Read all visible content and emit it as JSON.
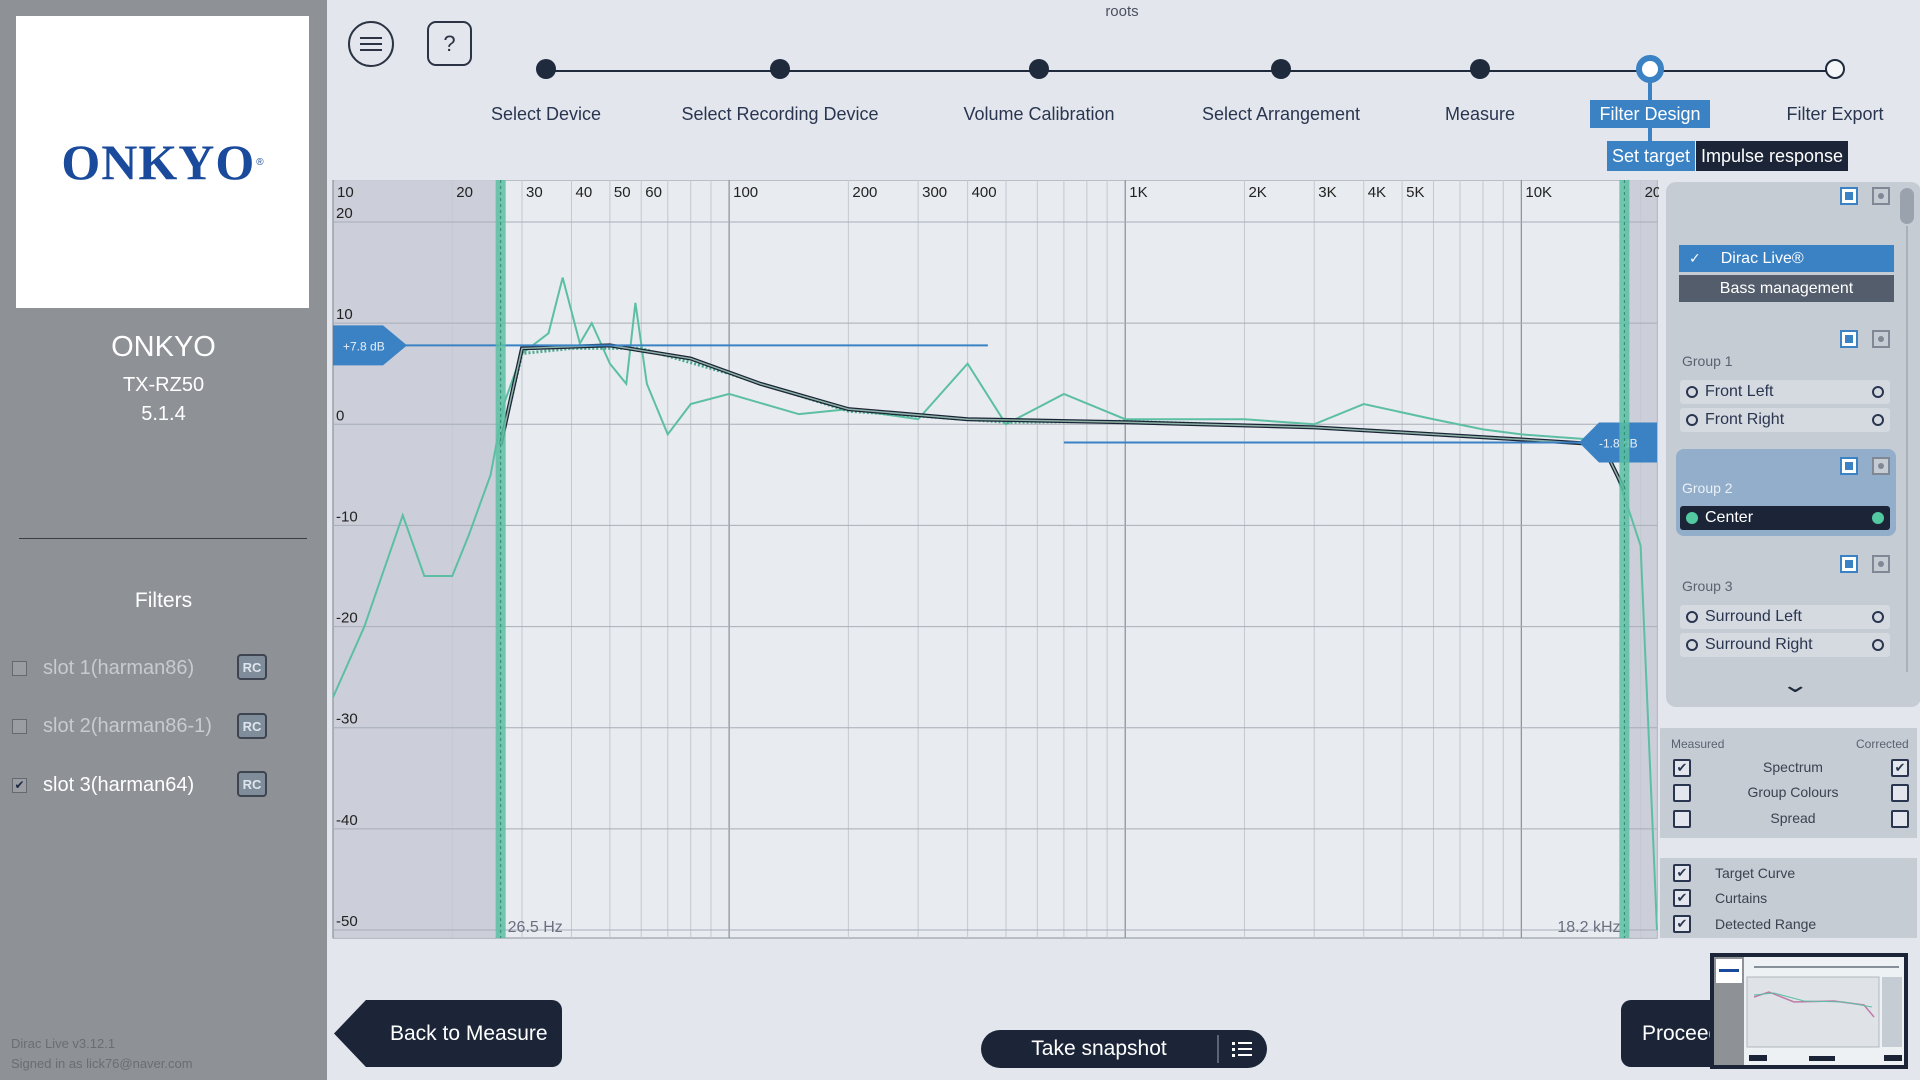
{
  "app": {
    "title": "roots"
  },
  "device": {
    "logo_text": "ONKYO",
    "brand": "ONKYO",
    "model": "TX-RZ50",
    "config": "5.1.4"
  },
  "filters": {
    "title": "Filters",
    "slots": [
      {
        "label": "slot 1(harman86)",
        "checked": false,
        "badge": "RC"
      },
      {
        "label": "slot 2(harman86-1)",
        "checked": false,
        "badge": "RC"
      },
      {
        "label": "slot 3(harman64)",
        "checked": true,
        "badge": "RC"
      }
    ]
  },
  "footer": {
    "version": "Dirac Live v3.12.1",
    "signed_in": "Signed in as lick76@naver.com"
  },
  "toolbar": {
    "help_label": "?"
  },
  "steps": [
    {
      "label": "Select Device",
      "state": "done"
    },
    {
      "label": "Select Recording Device",
      "state": "done"
    },
    {
      "label": "Volume Calibration",
      "state": "done"
    },
    {
      "label": "Select Arrangement",
      "state": "done"
    },
    {
      "label": "Measure",
      "state": "done"
    },
    {
      "label": "Filter Design",
      "state": "active"
    },
    {
      "label": "Filter Export",
      "state": "todo"
    }
  ],
  "subtabs": {
    "target": "Set target",
    "impulse": "Impulse response"
  },
  "chart": {
    "x_ticks": [
      "10",
      "20",
      "30",
      "40",
      "50",
      "60",
      "100",
      "200",
      "300",
      "400",
      "1K",
      "2K",
      "3K",
      "4K",
      "5K",
      "10K",
      "20K"
    ],
    "y_ticks": [
      "20",
      "10",
      "0",
      "-10",
      "-20",
      "-30",
      "-40",
      "-50"
    ],
    "low_curtain_label": "26.5 Hz",
    "high_curtain_label": "18.2 kHz",
    "low_shelf_label": "+7.8 dB",
    "high_shelf_label": "-1.8 dB"
  },
  "chart_data": {
    "type": "line",
    "xlabel": "",
    "ylabel": "",
    "x_scale": "log",
    "xlim": [
      10,
      22000
    ],
    "ylim": [
      -50,
      20
    ],
    "x_ticks": [
      10,
      20,
      30,
      40,
      50,
      60,
      100,
      200,
      300,
      400,
      1000,
      2000,
      3000,
      4000,
      5000,
      10000,
      20000
    ],
    "y_ticks": [
      20,
      10,
      0,
      -10,
      -20,
      -30,
      -40,
      -50
    ],
    "grid": true,
    "curtains_hz": [
      26.5,
      18200
    ],
    "target_curve": {
      "points": [
        [
          26.5,
          -2
        ],
        [
          30,
          7.5
        ],
        [
          50,
          7.8
        ],
        [
          80,
          6.5
        ],
        [
          120,
          4
        ],
        [
          200,
          1.5
        ],
        [
          400,
          0.5
        ],
        [
          1000,
          0.2
        ],
        [
          3000,
          -0.3
        ],
        [
          10000,
          -1.5
        ],
        [
          16000,
          -2
        ],
        [
          18200,
          -6.5
        ]
      ]
    },
    "corrected_response": {
      "points": [
        [
          26.5,
          -2
        ],
        [
          30,
          7
        ],
        [
          40,
          7.5
        ],
        [
          60,
          7.5
        ],
        [
          100,
          5
        ],
        [
          200,
          1.3
        ],
        [
          500,
          0.2
        ],
        [
          1000,
          0.3
        ],
        [
          3000,
          -0.3
        ],
        [
          10000,
          -1.5
        ],
        [
          16000,
          -2
        ],
        [
          18000,
          -6
        ]
      ]
    },
    "measured_response": {
      "points": [
        [
          10,
          -27
        ],
        [
          12,
          -20
        ],
        [
          15,
          -9
        ],
        [
          17,
          -15
        ],
        [
          20,
          -15
        ],
        [
          22,
          -11
        ],
        [
          25,
          -5
        ],
        [
          27,
          2
        ],
        [
          30,
          7
        ],
        [
          35,
          9
        ],
        [
          38,
          14.5
        ],
        [
          42,
          8
        ],
        [
          45,
          10
        ],
        [
          50,
          6
        ],
        [
          55,
          4
        ],
        [
          58,
          12
        ],
        [
          62,
          4
        ],
        [
          70,
          -1
        ],
        [
          80,
          2
        ],
        [
          100,
          3
        ],
        [
          150,
          1
        ],
        [
          200,
          1.5
        ],
        [
          300,
          0.5
        ],
        [
          400,
          6
        ],
        [
          500,
          0
        ],
        [
          700,
          3
        ],
        [
          1000,
          0.5
        ],
        [
          2000,
          0.5
        ],
        [
          3000,
          0
        ],
        [
          4000,
          2
        ],
        [
          6000,
          0.5
        ],
        [
          8000,
          -0.5
        ],
        [
          10000,
          -1
        ],
        [
          15000,
          -1.5
        ],
        [
          17000,
          -4
        ],
        [
          18500,
          -8
        ],
        [
          20000,
          -12
        ],
        [
          22000,
          -50
        ]
      ]
    },
    "low_shelf_db": 7.8,
    "high_shelf_db": -1.8
  },
  "channel_panel": {
    "dirac_live_label": "Dirac Live®",
    "bass_mgmt_label": "Bass management",
    "groups": [
      {
        "title": "Group 1",
        "channels": [
          "Front Left",
          "Front Right"
        ],
        "selected": false
      },
      {
        "title": "Group 2",
        "channels": [
          "Center"
        ],
        "selected": true
      },
      {
        "title": "Group 3",
        "channels": [
          "Surround Left",
          "Surround Right"
        ],
        "selected": false
      }
    ]
  },
  "spectrum_options": {
    "measured_label": "Measured",
    "corrected_label": "Corrected",
    "rows": [
      {
        "label": "Spectrum",
        "measured": true,
        "corrected": true
      },
      {
        "label": "Group Colours",
        "measured": false,
        "corrected": false
      },
      {
        "label": "Spread",
        "measured": false,
        "corrected": false
      }
    ]
  },
  "overlay_options": [
    {
      "label": "Target Curve",
      "checked": true
    },
    {
      "label": "Curtains",
      "checked": true
    },
    {
      "label": "Detected Range",
      "checked": true
    }
  ],
  "bottom": {
    "back_label": "Back to Measure",
    "snapshot_label": "Take snapshot",
    "proceed_label": "Proceed"
  },
  "colors": {
    "accent": "#3a82c4",
    "curve": "#5cbfa3",
    "navy": "#1c2538"
  },
  "icons": {
    "menu": "hamburger-icon",
    "snapshot_list": "list-icon",
    "scroll": "chevron-down-icon",
    "check": "check-icon"
  }
}
